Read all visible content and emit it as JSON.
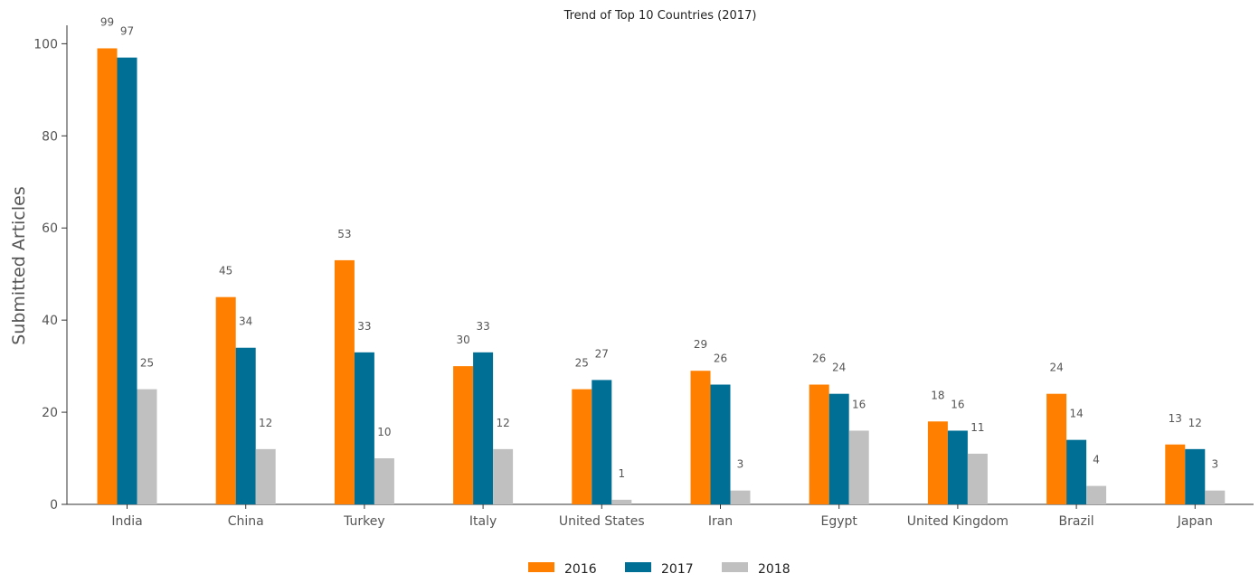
{
  "chart_data": {
    "type": "bar",
    "title": "Trend of Top 10 Countries (2017)",
    "xlabel": "",
    "ylabel": "Submitted Articles",
    "ylim": [
      0,
      104
    ],
    "yticks": [
      0,
      20,
      40,
      60,
      80,
      100
    ],
    "categories": [
      "India",
      "China",
      "Turkey",
      "Italy",
      "United States",
      "Iran",
      "Egypt",
      "United Kingdom",
      "Brazil",
      "Japan"
    ],
    "series": [
      {
        "name": "2016",
        "color": "#ff8000",
        "values": [
          99,
          45,
          53,
          30,
          25,
          29,
          26,
          18,
          24,
          13
        ]
      },
      {
        "name": "2017",
        "color": "#006f96",
        "values": [
          97,
          34,
          33,
          33,
          27,
          26,
          24,
          16,
          14,
          12
        ]
      },
      {
        "name": "2018",
        "color": "#c0c0c0",
        "values": [
          25,
          12,
          10,
          12,
          1,
          3,
          16,
          11,
          4,
          3
        ]
      }
    ],
    "grid": false,
    "legend_position": "bottom-center"
  }
}
